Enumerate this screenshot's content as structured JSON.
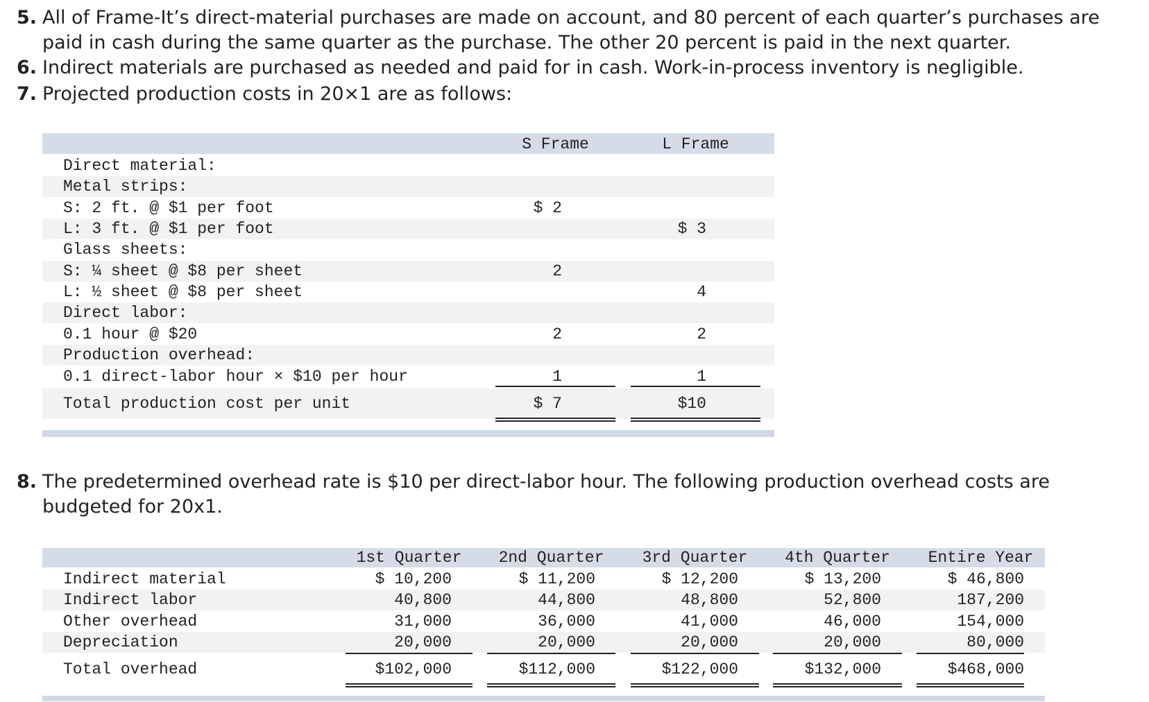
{
  "items": [
    {
      "number": "5.",
      "lines": [
        "All of Frame-It’s direct-material purchases are made on account, and 80 percent of each quarter’s purchases are",
        "paid in cash during the same quarter as the purchase. The other 20 percent is paid in the next quarter."
      ]
    },
    {
      "number": "6.",
      "lines": [
        "Indirect materials are purchased as needed and paid for in cash. Work-in-process inventory is negligible."
      ]
    },
    {
      "number": "7.",
      "lines": [
        "Projected production costs in 20×1 are as follows:"
      ]
    }
  ],
  "table1": {
    "header": [
      "S Frame",
      "L Frame"
    ],
    "rows": [
      [
        "Direct material:",
        "",
        ""
      ],
      [
        "Metal strips:",
        "",
        ""
      ],
      [
        "S: 2 ft. @ $1 per foot",
        "$ 2",
        ""
      ],
      [
        "L: 3 ft. @ $1 per foot",
        "",
        "$ 3"
      ],
      [
        "Glass sheets:",
        "",
        ""
      ],
      [
        "S: ¼ sheet @ $8 per sheet",
        "2",
        ""
      ],
      [
        "L: ½ sheet @ $8 per sheet",
        "",
        "4"
      ],
      [
        "Direct labor:",
        "",
        ""
      ],
      [
        "0.1 hour @ $20",
        "2",
        "2"
      ],
      [
        "Production overhead:",
        "",
        ""
      ],
      [
        "0.1 direct-labor hour × $10 per hour",
        "1",
        "1"
      ],
      [
        "Total production cost per unit",
        "$ 7",
        "$10"
      ]
    ]
  },
  "item8": {
    "number": "8.",
    "lines": [
      "The predetermined overhead rate is $10 per direct-labor hour. The following production overhead costs are",
      "budgeted for 20x1."
    ]
  },
  "table2": {
    "header": [
      "1st Quarter",
      "2nd Quarter",
      "3rd Quarter",
      "4th Quarter",
      "Entire Year"
    ],
    "rows": [
      [
        "Indirect material",
        "$ 10,200",
        "$ 11,200",
        "$ 12,200",
        "$ 13,200",
        "$ 46,800"
      ],
      [
        "Indirect labor",
        "40,800",
        "44,800",
        "48,800",
        "52,800",
        "187,200"
      ],
      [
        "Other overhead",
        "31,000",
        "36,000",
        "41,000",
        "46,000",
        "154,000"
      ],
      [
        "Depreciation",
        "20,000",
        "20,000",
        "20,000",
        "20,000",
        "80,000"
      ],
      [
        "Total overhead",
        "$102,000",
        "$112,000",
        "$122,000",
        "$132,000",
        "$468,000"
      ]
    ]
  }
}
